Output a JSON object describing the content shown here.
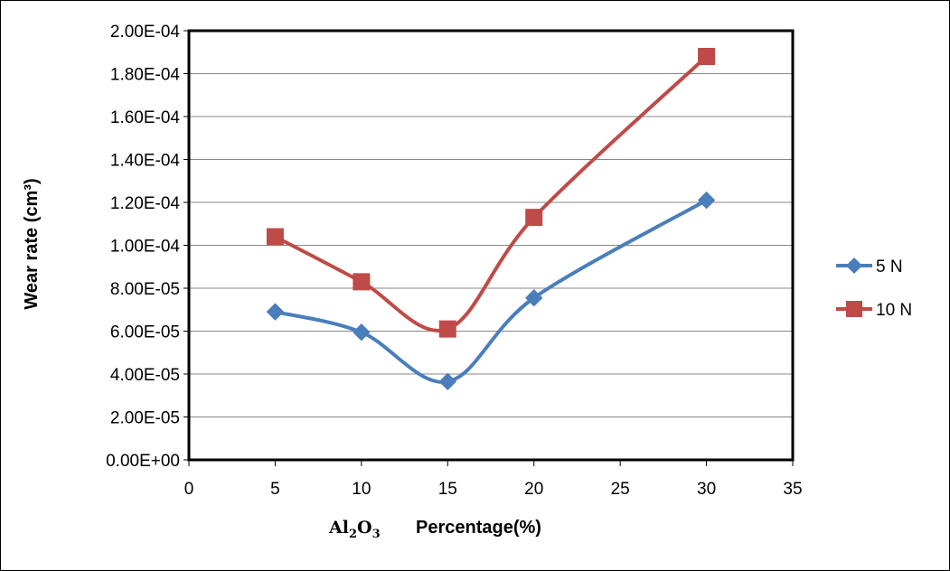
{
  "chart_data": {
    "type": "scatter",
    "subtype": "smooth-line-with-markers",
    "x_axis": {
      "label_formula": {
        "base1": "Al",
        "sub1": "2",
        "base2": "O",
        "sub2": "3"
      },
      "label": "Percentage(%)",
      "min": 0,
      "max": 35,
      "step": 5,
      "ticks": [
        "0",
        "5",
        "10",
        "15",
        "20",
        "25",
        "30",
        "35"
      ]
    },
    "y_axis": {
      "label": "Wear rate (cm³)",
      "min": 0,
      "max": 0.0002,
      "step": 2e-05,
      "ticks": [
        "0.00E+00",
        "2.00E-05",
        "4.00E-05",
        "6.00E-05",
        "8.00E-05",
        "1.00E-04",
        "1.20E-04",
        "1.40E-04",
        "1.60E-04",
        "1.80E-04",
        "2.00E-04"
      ]
    },
    "grid": "horizontal",
    "legend_position": "right",
    "series": [
      {
        "name": "5 N",
        "color": "#4a7ebb",
        "marker": "diamond",
        "x": [
          5,
          10,
          15,
          20,
          30
        ],
        "y": [
          6.9e-05,
          5.95e-05,
          3.65e-05,
          7.55e-05,
          0.000121
        ]
      },
      {
        "name": "10 N",
        "color": "#be4b48",
        "marker": "square",
        "x": [
          5,
          10,
          15,
          20,
          30
        ],
        "y": [
          0.000104,
          8.3e-05,
          6.1e-05,
          0.000113,
          0.000188
        ]
      }
    ]
  }
}
